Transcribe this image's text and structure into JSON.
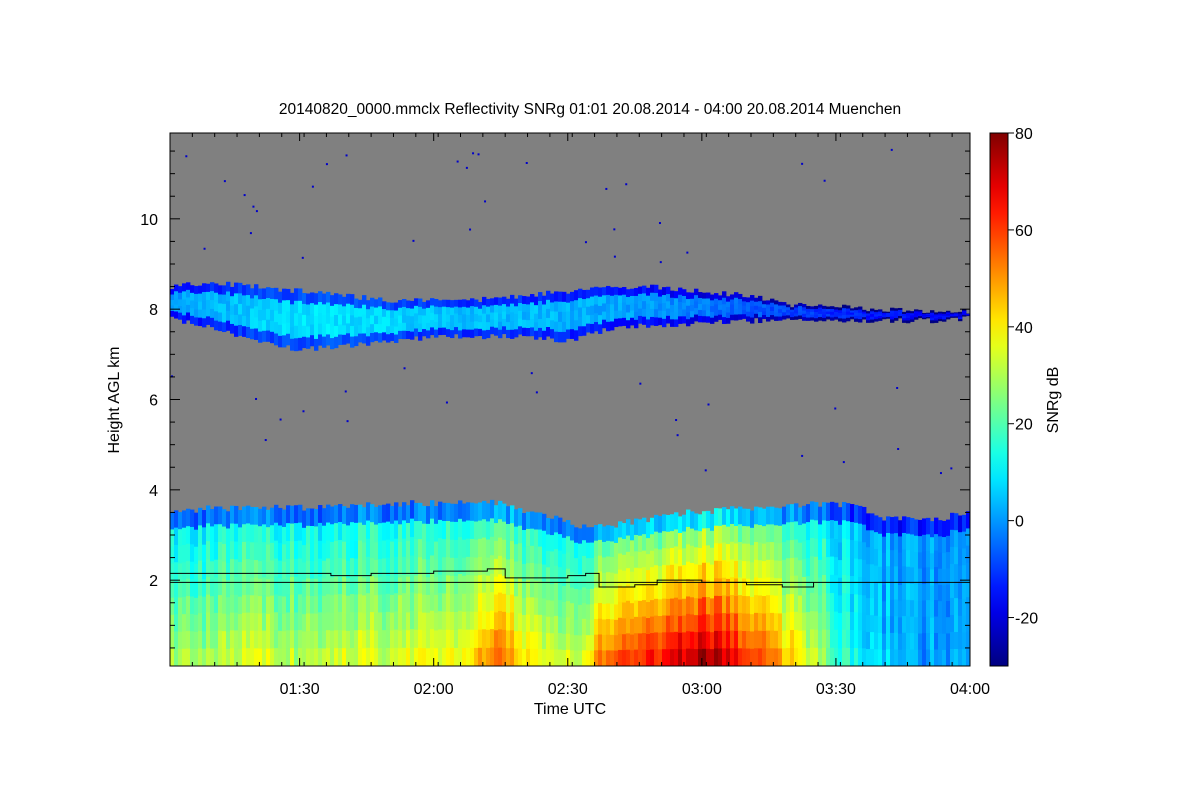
{
  "chart_data": {
    "type": "heatmap",
    "title": "20140820_0000.mmclx Reflectivity SNRg   01:01 20.08.2014 - 04:00 20.08.2014 Muenchen",
    "xlabel": "Time UTC",
    "ylabel": "Height AGL km",
    "colorbar_label": "SNRg dB",
    "x_range": [
      "01:01",
      "04:00"
    ],
    "xlim_minutes": [
      61,
      240
    ],
    "ylim": [
      0.1,
      11.9
    ],
    "x_ticks": [
      {
        "label": "01:30",
        "minutes": 90
      },
      {
        "label": "02:00",
        "minutes": 120
      },
      {
        "label": "02:30",
        "minutes": 150
      },
      {
        "label": "03:00",
        "minutes": 180
      },
      {
        "label": "03:30",
        "minutes": 210
      },
      {
        "label": "04:00",
        "minutes": 240
      }
    ],
    "y_ticks": [
      {
        "label": "2",
        "value": 2
      },
      {
        "label": "4",
        "value": 4
      },
      {
        "label": "6",
        "value": 6
      },
      {
        "label": "8",
        "value": 8
      },
      {
        "label": "10",
        "value": 10
      }
    ],
    "colorbar_range": [
      -30,
      80
    ],
    "colorbar_ticks": [
      {
        "label": "-20",
        "value": -20
      },
      {
        "label": "0",
        "value": 0
      },
      {
        "label": "20",
        "value": 20
      },
      {
        "label": "40",
        "value": 40
      },
      {
        "label": "60",
        "value": 60
      },
      {
        "label": "80",
        "value": 80
      }
    ],
    "colormap": "jet",
    "no_signal_color": "#808080",
    "reference_line_height": 1.95,
    "upper_layer": {
      "time_minutes": [
        61,
        70,
        80,
        90,
        100,
        110,
        120,
        130,
        140,
        150,
        160,
        170,
        180,
        190,
        200,
        210,
        220,
        230,
        240
      ],
      "top_km": [
        8.5,
        8.6,
        8.5,
        8.4,
        8.3,
        8.2,
        8.2,
        8.2,
        8.3,
        8.4,
        8.5,
        8.5,
        8.4,
        8.3,
        8.1,
        8.05,
        8.0,
        7.95,
        7.95
      ],
      "base_km": [
        7.8,
        7.6,
        7.3,
        7.1,
        7.2,
        7.3,
        7.4,
        7.4,
        7.4,
        7.3,
        7.6,
        7.65,
        7.7,
        7.75,
        7.75,
        7.75,
        7.75,
        7.75,
        7.8
      ],
      "snr_db": [
        0,
        3,
        6,
        8,
        8,
        7,
        5,
        4,
        4,
        3,
        2,
        0,
        -3,
        -6,
        -9,
        -12,
        -14,
        -16,
        -18
      ]
    },
    "lower_layer": {
      "time_minutes": [
        61,
        70,
        80,
        90,
        100,
        110,
        120,
        128,
        135,
        140,
        146,
        152,
        158,
        165,
        170,
        176,
        180,
        186,
        192,
        198,
        205,
        210,
        215,
        220,
        230,
        240
      ],
      "top_km": [
        3.5,
        3.6,
        3.6,
        3.6,
        3.65,
        3.7,
        3.7,
        3.75,
        3.7,
        3.5,
        3.4,
        3.2,
        3.2,
        3.3,
        3.4,
        3.5,
        3.5,
        3.6,
        3.6,
        3.65,
        3.7,
        3.7,
        3.6,
        3.4,
        3.3,
        3.5
      ],
      "snr_db": [
        28,
        26,
        30,
        28,
        32,
        30,
        34,
        36,
        52,
        36,
        32,
        30,
        48,
        52,
        58,
        64,
        70,
        62,
        52,
        42,
        30,
        18,
        12,
        5,
        0,
        3
      ]
    },
    "boundary_line": {
      "time_minutes": [
        61,
        95,
        97,
        104,
        106,
        120,
        132,
        136,
        150,
        154,
        157,
        165,
        170,
        180,
        190,
        198,
        205
      ],
      "height_km": [
        2.15,
        2.15,
        2.1,
        2.1,
        2.15,
        2.2,
        2.25,
        2.05,
        2.1,
        2.15,
        1.85,
        1.9,
        2.0,
        1.95,
        1.9,
        1.85,
        1.95
      ]
    }
  }
}
